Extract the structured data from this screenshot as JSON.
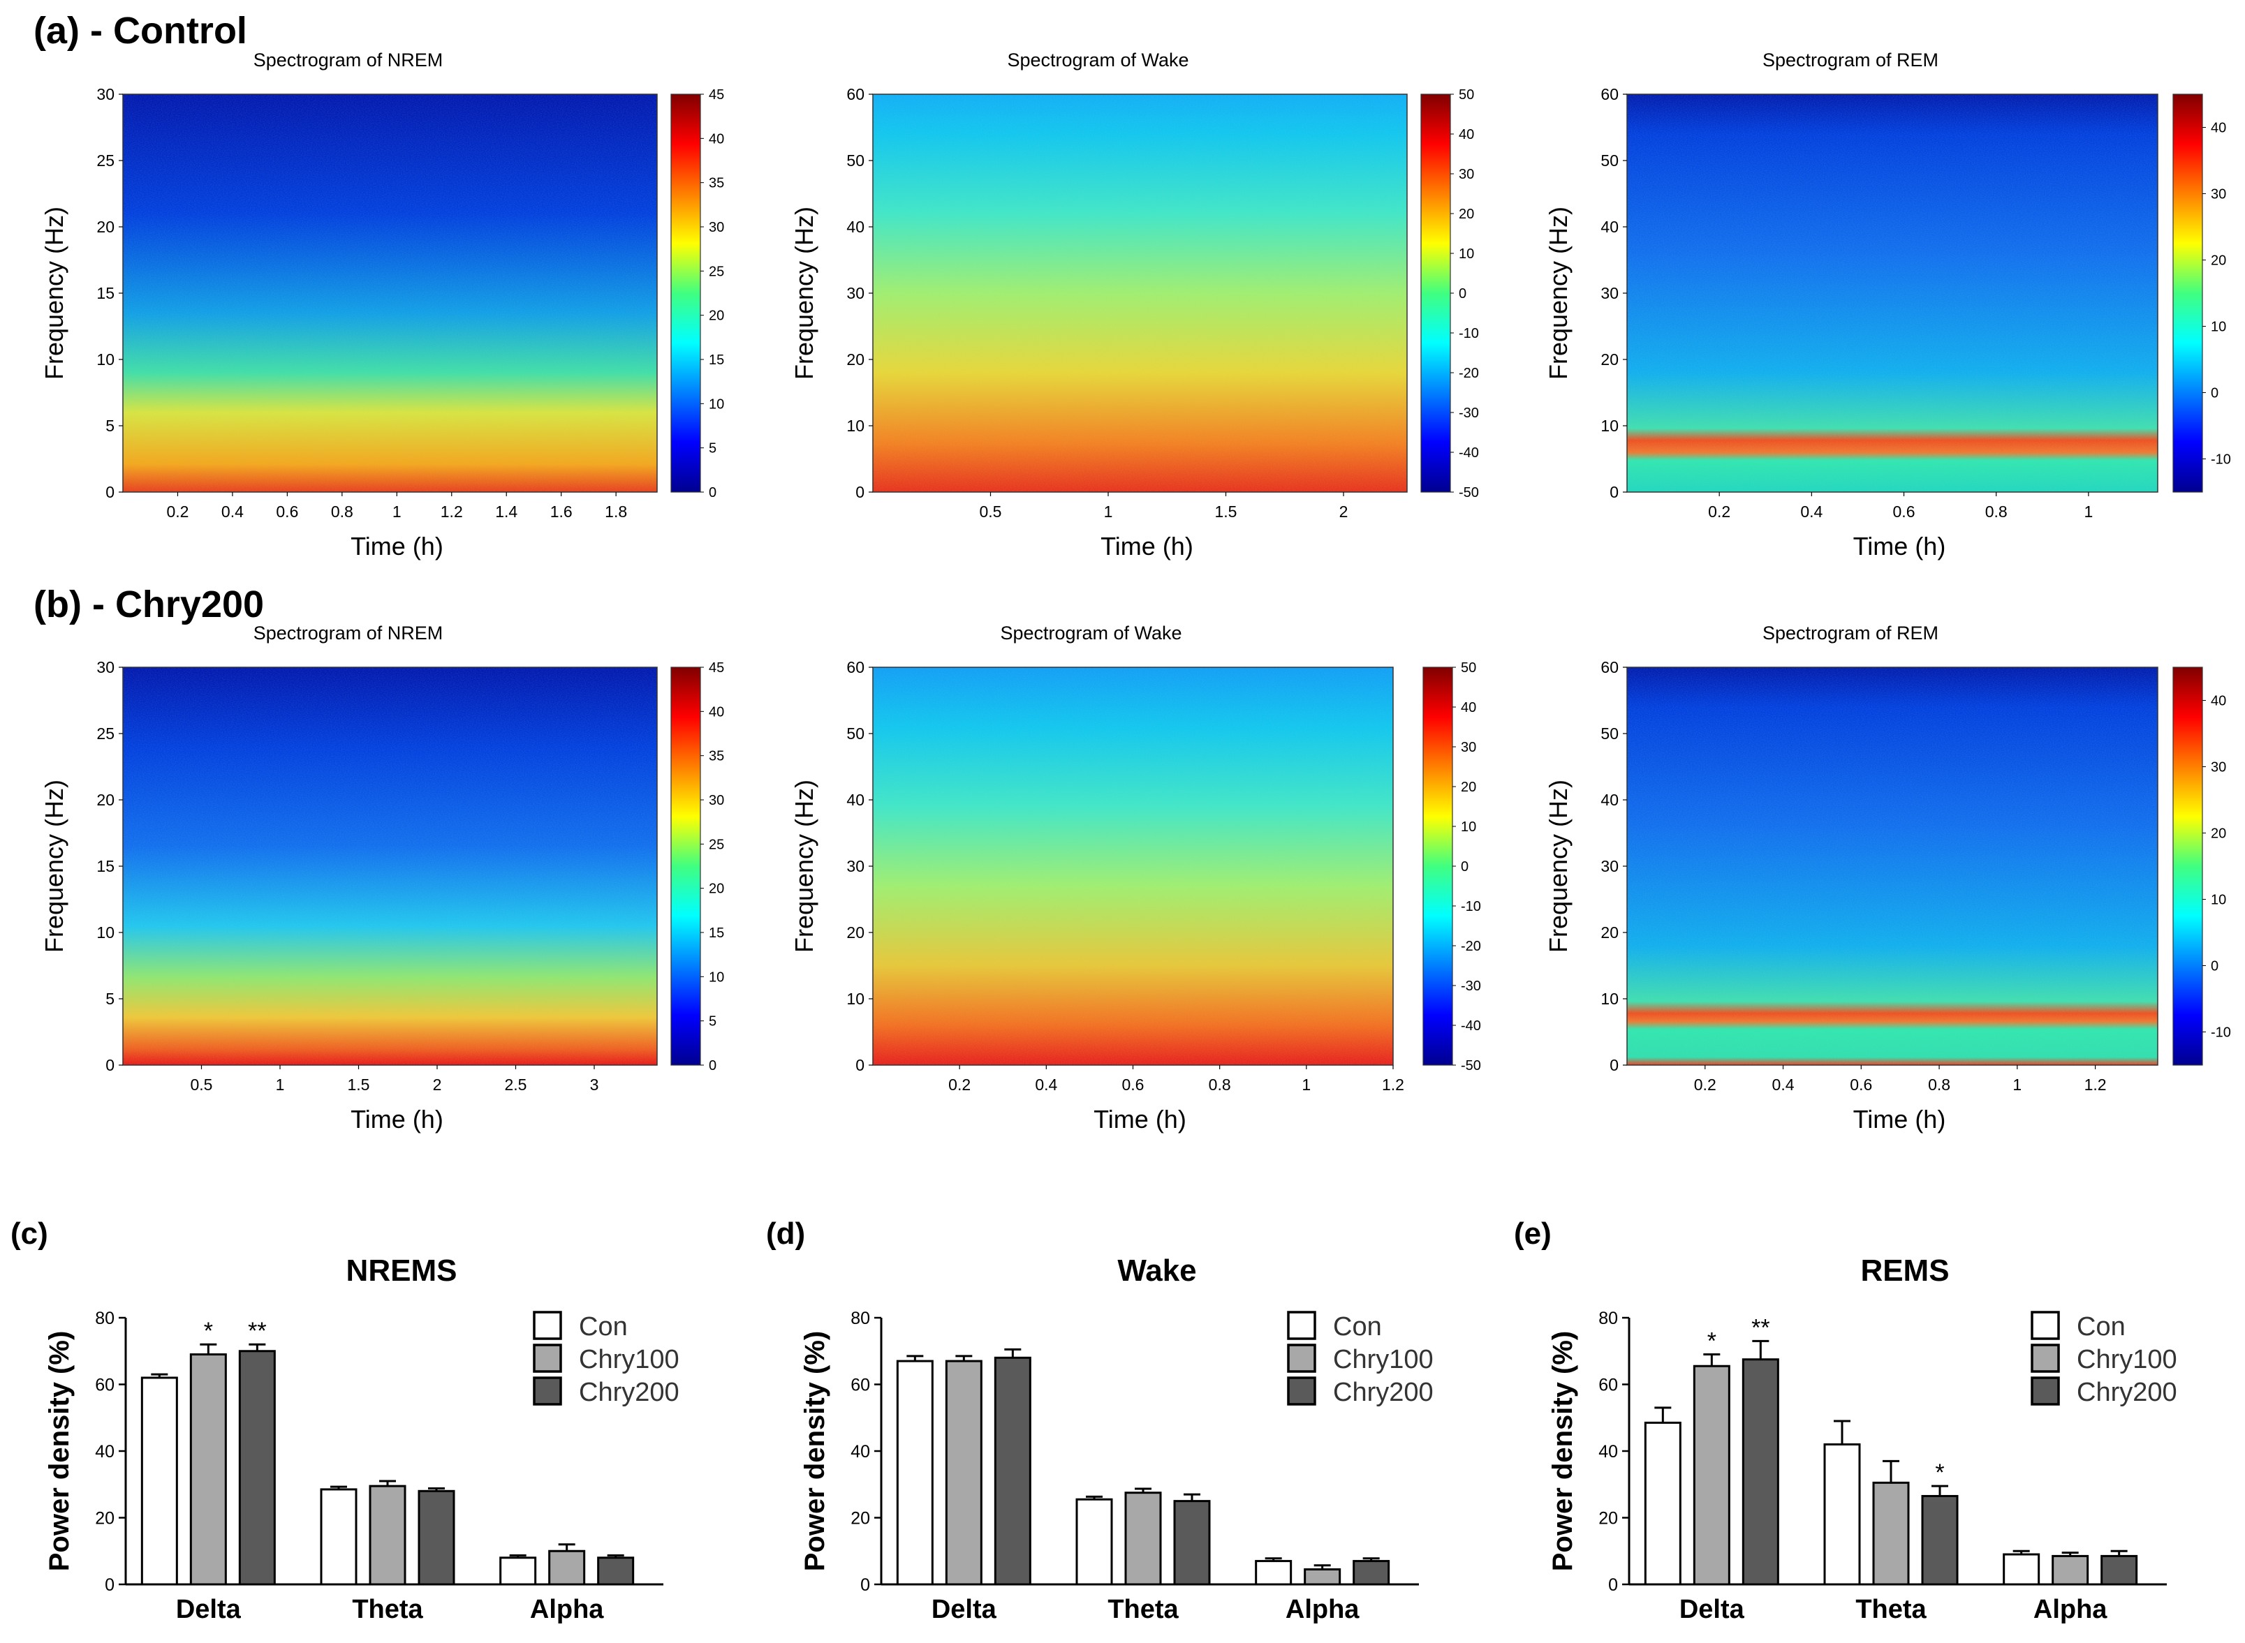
{
  "rows": [
    {
      "label": "(a) - Control"
    },
    {
      "label": "(b) - Chry200"
    }
  ],
  "chart_data": [
    {
      "type": "heatmap",
      "group": "Control",
      "title": "Spectrogram of NREM",
      "xlabel": "Time (h)",
      "ylabel": "Frequency (Hz)",
      "xlim": [
        0,
        1.95
      ],
      "ylim": [
        0,
        30
      ],
      "xticks": [
        "0.2",
        "0.4",
        "0.6",
        "0.8",
        "1",
        "1.2",
        "1.4",
        "1.6",
        "1.8"
      ],
      "yticks": [
        "0",
        "5",
        "10",
        "15",
        "20",
        "25",
        "30"
      ],
      "colorbar": {
        "range": [
          0,
          45
        ],
        "ticks": [
          "0",
          "5",
          "10",
          "15",
          "20",
          "25",
          "30",
          "35",
          "40",
          "45"
        ]
      },
      "bands": [
        {
          "from_hz": 0,
          "to_hz": 8,
          "level": "high"
        }
      ]
    },
    {
      "type": "heatmap",
      "group": "Control",
      "title": "Spectrogram of Wake",
      "xlabel": "Time (h)",
      "ylabel": "Frequency (Hz)",
      "xlim": [
        0,
        2.27
      ],
      "ylim": [
        0,
        60
      ],
      "xticks": [
        "0.5",
        "1",
        "1.5",
        "2"
      ],
      "yticks": [
        "0",
        "10",
        "20",
        "30",
        "40",
        "50",
        "60"
      ],
      "colorbar": {
        "range": [
          -50,
          50
        ],
        "ticks": [
          "-50",
          "-40",
          "-30",
          "-20",
          "-10",
          "0",
          "10",
          "20",
          "30",
          "40",
          "50"
        ]
      },
      "bands": [
        {
          "from_hz": 0,
          "to_hz": 12,
          "level": "high"
        }
      ]
    },
    {
      "type": "heatmap",
      "group": "Control",
      "title": "Spectrogram of REM",
      "xlabel": "Time (h)",
      "ylabel": "Frequency (Hz)",
      "xlim": [
        0,
        1.15
      ],
      "ylim": [
        0,
        60
      ],
      "xticks": [
        "0.2",
        "0.4",
        "0.6",
        "0.8",
        "1"
      ],
      "yticks": [
        "0",
        "10",
        "20",
        "30",
        "40",
        "50",
        "60"
      ],
      "colorbar": {
        "range": [
          -15,
          45
        ],
        "ticks": [
          "-10",
          "0",
          "10",
          "20",
          "30",
          "40"
        ]
      },
      "bands": [
        {
          "from_hz": 5,
          "to_hz": 8,
          "level": "theta"
        }
      ]
    },
    {
      "type": "heatmap",
      "group": "Chry200",
      "title": "Spectrogram of NREM",
      "xlabel": "Time (h)",
      "ylabel": "Frequency (Hz)",
      "xlim": [
        0,
        3.4
      ],
      "ylim": [
        0,
        30
      ],
      "xticks": [
        "0.5",
        "1",
        "1.5",
        "2",
        "2.5",
        "3"
      ],
      "yticks": [
        "0",
        "5",
        "10",
        "15",
        "20",
        "25",
        "30"
      ],
      "colorbar": {
        "range": [
          0,
          45
        ],
        "ticks": [
          "0",
          "5",
          "10",
          "15",
          "20",
          "25",
          "30",
          "35",
          "40",
          "45"
        ]
      },
      "bands": [
        {
          "from_hz": 0,
          "to_hz": 4,
          "level": "high"
        }
      ]
    },
    {
      "type": "heatmap",
      "group": "Chry200",
      "title": "Spectrogram of Wake",
      "xlabel": "Time (h)",
      "ylabel": "Frequency (Hz)",
      "xlim": [
        0,
        1.2
      ],
      "ylim": [
        0,
        60
      ],
      "xticks": [
        "0.2",
        "0.4",
        "0.6",
        "0.8",
        "1",
        "1.2"
      ],
      "yticks": [
        "0",
        "10",
        "20",
        "30",
        "40",
        "50",
        "60"
      ],
      "colorbar": {
        "range": [
          -50,
          50
        ],
        "ticks": [
          "-50",
          "-40",
          "-30",
          "-20",
          "-10",
          "0",
          "10",
          "20",
          "30",
          "40",
          "50"
        ]
      },
      "bands": [
        {
          "from_hz": 0,
          "to_hz": 12,
          "level": "high"
        }
      ]
    },
    {
      "type": "heatmap",
      "group": "Chry200",
      "title": "Spectrogram of REM",
      "xlabel": "Time (h)",
      "ylabel": "Frequency (Hz)",
      "xlim": [
        0,
        1.36
      ],
      "ylim": [
        0,
        60
      ],
      "xticks": [
        "0.2",
        "0.4",
        "0.6",
        "0.8",
        "1",
        "1.2"
      ],
      "yticks": [
        "0",
        "10",
        "20",
        "30",
        "40",
        "50",
        "60"
      ],
      "colorbar": {
        "range": [
          -15,
          45
        ],
        "ticks": [
          "-10",
          "0",
          "10",
          "20",
          "30",
          "40"
        ]
      },
      "bands": [
        {
          "from_hz": 5,
          "to_hz": 8,
          "level": "theta"
        }
      ]
    },
    {
      "type": "bar",
      "panel": "(c)",
      "title": "NREMS",
      "ylabel": "Power density (%)",
      "ylim": [
        0,
        80
      ],
      "yticks": [
        "0",
        "20",
        "40",
        "60",
        "80"
      ],
      "categories": [
        "Delta",
        "Theta",
        "Alpha"
      ],
      "series": [
        {
          "name": "Con",
          "color": "#ffffff",
          "values": [
            62,
            28.5,
            8
          ],
          "errors": [
            1,
            0.8,
            0.7
          ],
          "sig": [
            "",
            "",
            ""
          ]
        },
        {
          "name": "Chry100",
          "color": "#a8a8a8",
          "values": [
            69,
            29.5,
            10
          ],
          "errors": [
            3,
            1.5,
            2
          ],
          "sig": [
            "*",
            "",
            ""
          ]
        },
        {
          "name": "Chry200",
          "color": "#5a5a5a",
          "values": [
            70,
            28,
            8
          ],
          "errors": [
            2,
            0.8,
            0.7
          ],
          "sig": [
            "**",
            "",
            ""
          ]
        }
      ]
    },
    {
      "type": "bar",
      "panel": "(d)",
      "title": "Wake",
      "ylabel": "Power density (%)",
      "ylim": [
        0,
        80
      ],
      "yticks": [
        "0",
        "20",
        "40",
        "60",
        "80"
      ],
      "categories": [
        "Delta",
        "Theta",
        "Alpha"
      ],
      "series": [
        {
          "name": "Con",
          "color": "#ffffff",
          "values": [
            67,
            25.5,
            7
          ],
          "errors": [
            1.5,
            0.8,
            0.8
          ],
          "sig": [
            "",
            "",
            ""
          ]
        },
        {
          "name": "Chry100",
          "color": "#a8a8a8",
          "values": [
            67,
            27.5,
            4.5
          ],
          "errors": [
            1.5,
            1.2,
            1.2
          ],
          "sig": [
            "",
            "",
            ""
          ]
        },
        {
          "name": "Chry200",
          "color": "#5a5a5a",
          "values": [
            68,
            25,
            7
          ],
          "errors": [
            2.5,
            2,
            0.8
          ],
          "sig": [
            "",
            "",
            ""
          ]
        }
      ]
    },
    {
      "type": "bar",
      "panel": "(e)",
      "title": "REMS",
      "ylabel": "Power density (%)",
      "ylim": [
        0,
        80
      ],
      "yticks": [
        "0",
        "20",
        "40",
        "60",
        "80"
      ],
      "categories": [
        "Delta",
        "Theta",
        "Alpha"
      ],
      "series": [
        {
          "name": "Con",
          "color": "#ffffff",
          "values": [
            48.5,
            42,
            9
          ],
          "errors": [
            4.5,
            7,
            1
          ],
          "sig": [
            "",
            "",
            ""
          ]
        },
        {
          "name": "Chry100",
          "color": "#a8a8a8",
          "values": [
            65.5,
            30.5,
            8.5
          ],
          "errors": [
            3.5,
            6.5,
            1
          ],
          "sig": [
            "*",
            "",
            ""
          ]
        },
        {
          "name": "Chry200",
          "color": "#5a5a5a",
          "values": [
            67.5,
            26.5,
            8.5
          ],
          "errors": [
            5.5,
            3,
            1.5
          ],
          "sig": [
            "**",
            "*",
            ""
          ]
        }
      ]
    }
  ]
}
